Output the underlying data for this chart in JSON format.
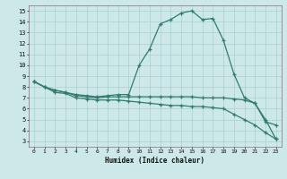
{
  "xlabel": "Humidex (Indice chaleur)",
  "ylabel": "",
  "bg_color": "#cce8e8",
  "line_color": "#2e7d6e",
  "grid_color": "#aacfcf",
  "xlim": [
    -0.5,
    23.5
  ],
  "ylim": [
    2.5,
    15.5
  ],
  "xticks": [
    0,
    1,
    2,
    3,
    4,
    5,
    6,
    7,
    8,
    9,
    10,
    11,
    12,
    13,
    14,
    15,
    16,
    17,
    18,
    19,
    20,
    21,
    22,
    23
  ],
  "yticks": [
    3,
    4,
    5,
    6,
    7,
    8,
    9,
    10,
    11,
    12,
    13,
    14,
    15
  ],
  "line1_x": [
    0,
    1,
    2,
    3,
    4,
    5,
    6,
    7,
    8,
    9,
    10,
    11,
    12,
    13,
    14,
    15,
    16,
    17,
    18,
    19,
    20,
    21,
    22,
    23
  ],
  "line1_y": [
    8.5,
    8.0,
    7.7,
    7.5,
    7.3,
    7.2,
    7.1,
    7.2,
    7.3,
    7.3,
    10.0,
    11.5,
    13.8,
    14.2,
    14.8,
    15.0,
    14.2,
    14.3,
    12.3,
    9.2,
    7.0,
    6.5,
    4.8,
    4.5
  ],
  "line2_x": [
    0,
    1,
    2,
    3,
    4,
    5,
    6,
    7,
    8,
    9,
    10,
    11,
    12,
    13,
    14,
    15,
    16,
    17,
    18,
    19,
    20,
    21,
    22,
    23
  ],
  "line2_y": [
    8.5,
    8.0,
    7.7,
    7.5,
    7.2,
    7.1,
    7.0,
    7.1,
    7.1,
    7.1,
    7.1,
    7.1,
    7.1,
    7.1,
    7.1,
    7.1,
    7.0,
    7.0,
    7.0,
    6.9,
    6.8,
    6.5,
    5.0,
    3.2
  ],
  "line3_x": [
    0,
    1,
    2,
    3,
    4,
    5,
    6,
    7,
    8,
    9,
    10,
    11,
    12,
    13,
    14,
    15,
    16,
    17,
    18,
    19,
    20,
    21,
    22,
    23
  ],
  "line3_y": [
    8.5,
    8.0,
    7.5,
    7.4,
    7.0,
    6.9,
    6.8,
    6.8,
    6.8,
    6.7,
    6.6,
    6.5,
    6.4,
    6.3,
    6.3,
    6.2,
    6.2,
    6.1,
    6.0,
    5.5,
    5.0,
    4.5,
    3.8,
    3.2
  ]
}
